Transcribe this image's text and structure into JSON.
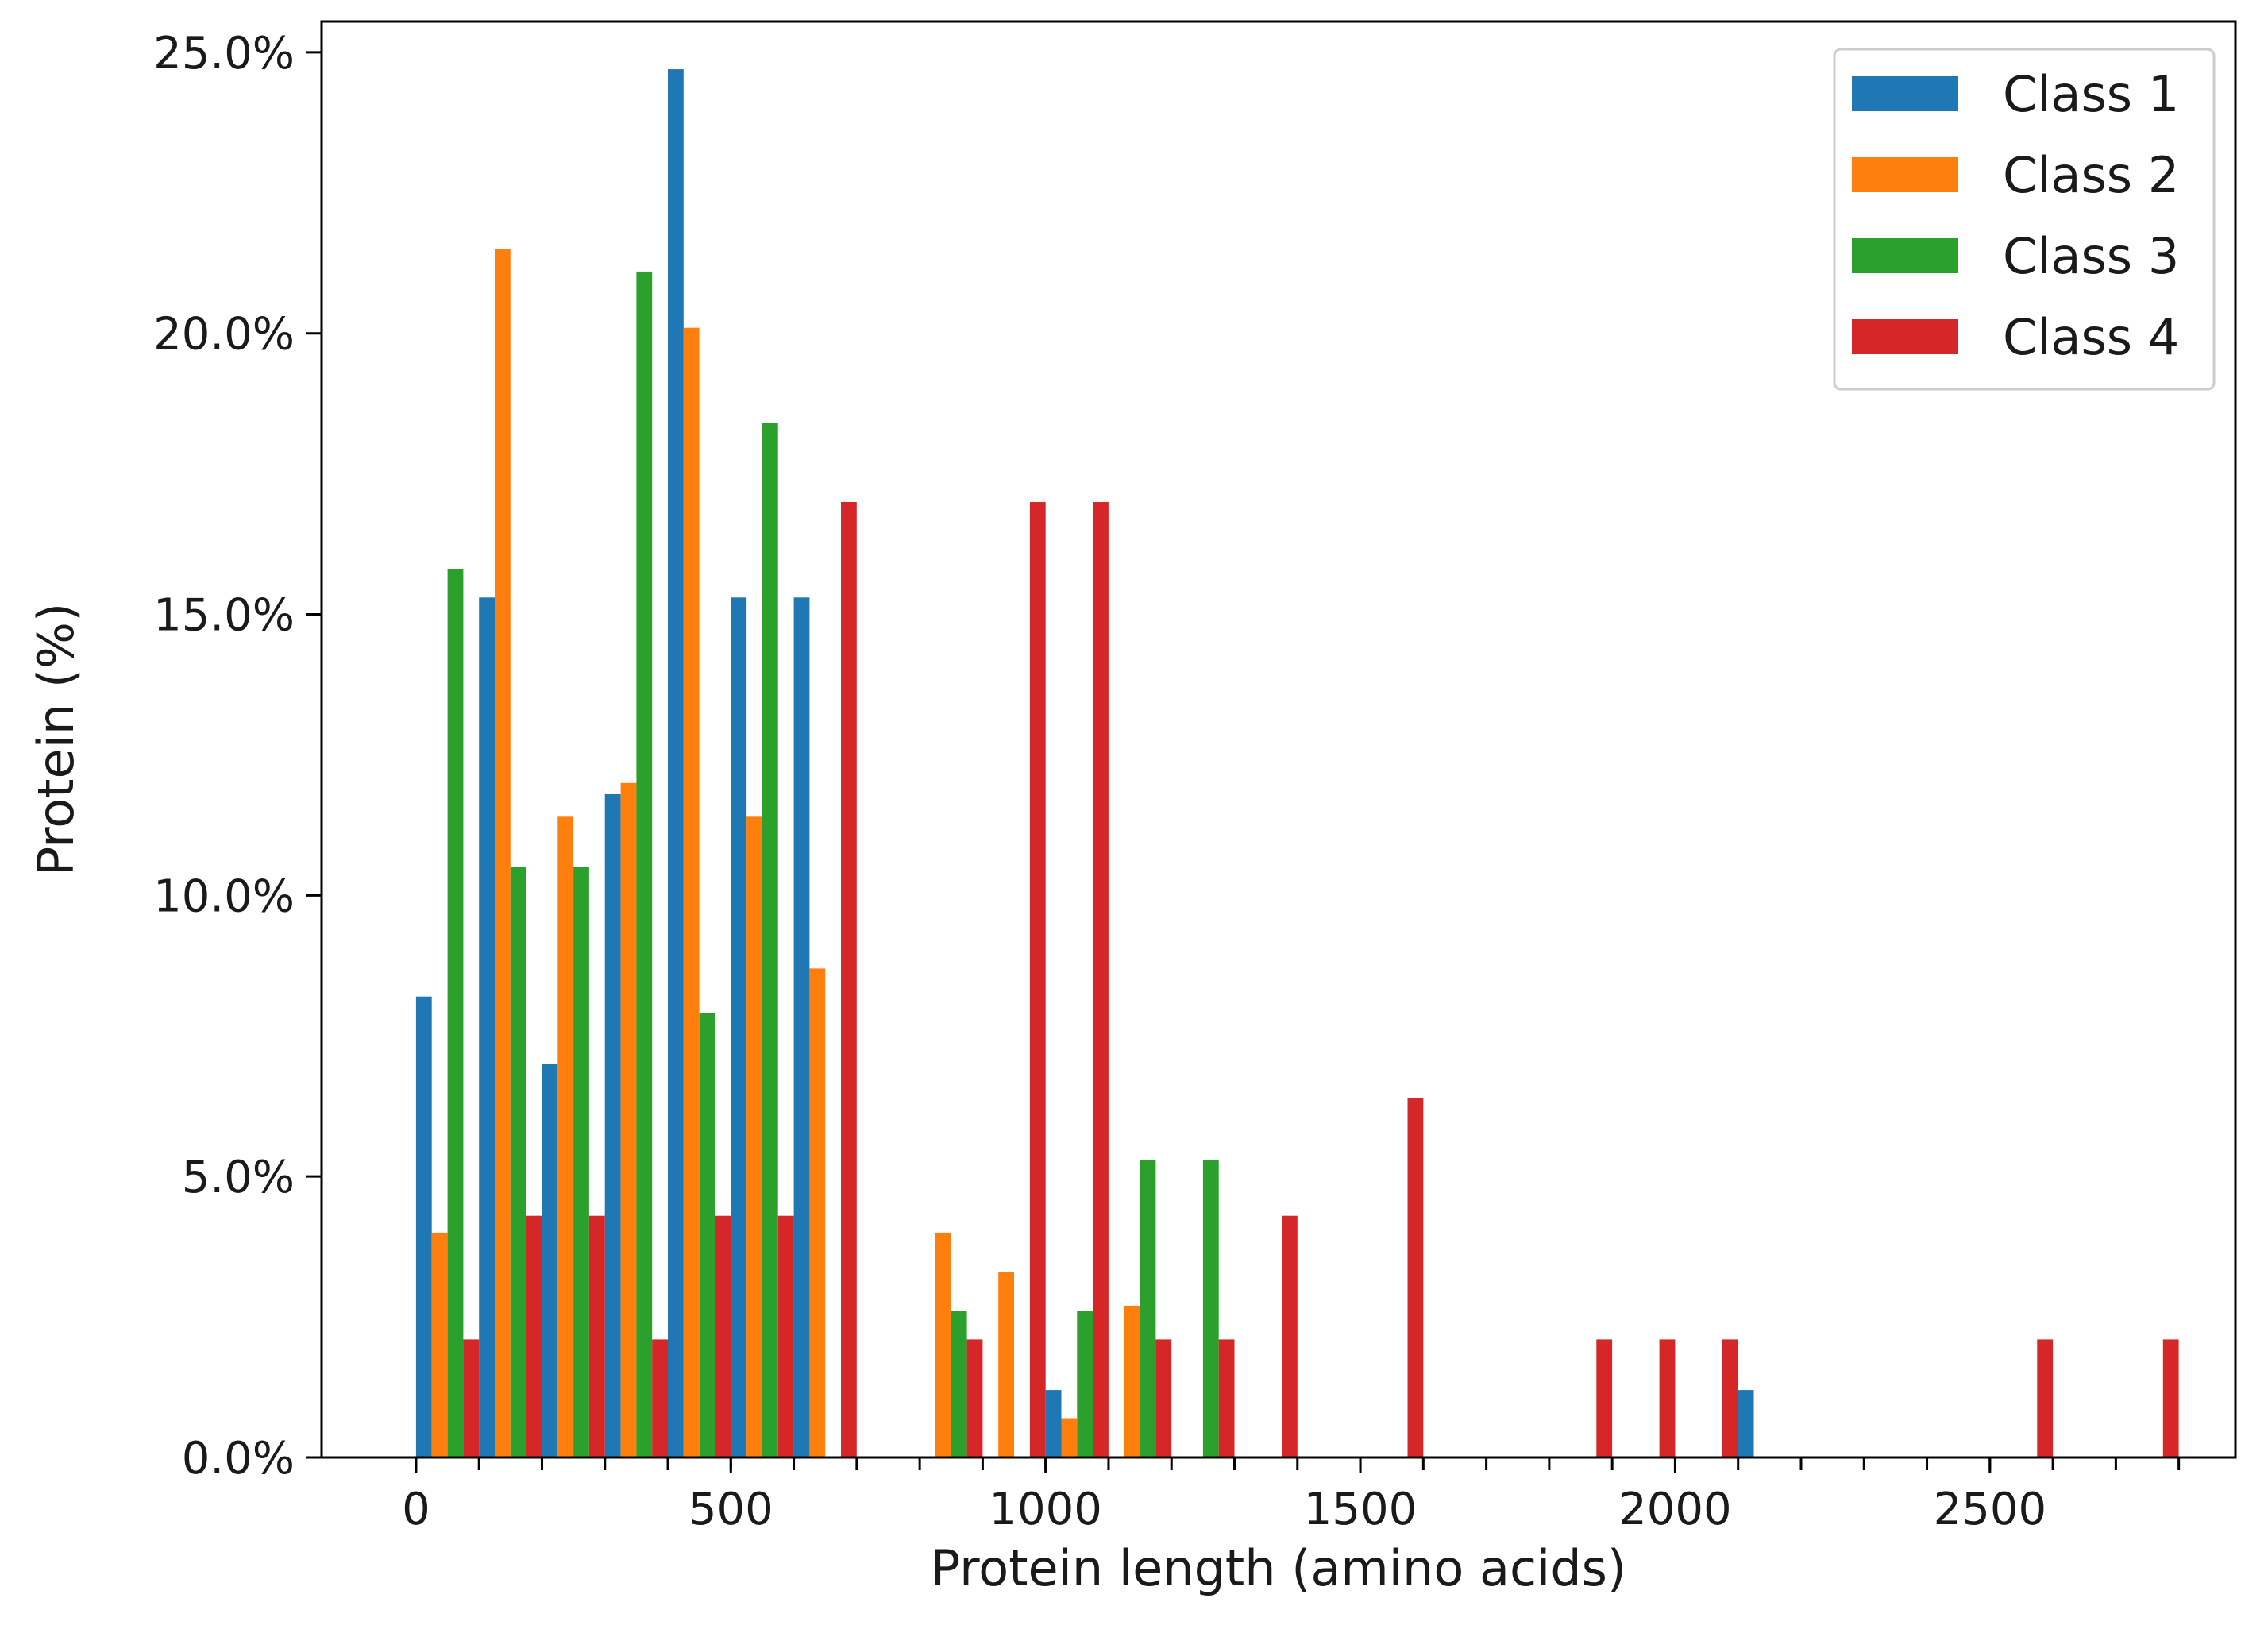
{
  "chart_data": {
    "type": "bar",
    "title": "",
    "xlabel": "Protein length (amino acids)",
    "ylabel": "Protein (%)",
    "xlim": [
      -150,
      2890
    ],
    "ylim": [
      0,
      0.2555
    ],
    "bin_edges": [
      0,
      100,
      200,
      300,
      400,
      500,
      600,
      700,
      800,
      900,
      1000,
      1100,
      1200,
      1300,
      1400,
      1500,
      1600,
      1700,
      1800,
      1900,
      2000,
      2100,
      2200,
      2300,
      2400,
      2500,
      2600,
      2700,
      2800
    ],
    "xticks": [
      0,
      500,
      1000,
      1500,
      2000,
      2500
    ],
    "xtick_labels": [
      "0",
      "500",
      "1000",
      "1500",
      "2000",
      "2500"
    ],
    "yticks": [
      0,
      0.05,
      0.1,
      0.15,
      0.2,
      0.25
    ],
    "ytick_labels": [
      "0.0%",
      "5.0%",
      "10.0%",
      "15.0%",
      "20.0%",
      "25.0%"
    ],
    "legend_position": "top-right",
    "series": [
      {
        "name": "Class 1",
        "color": "#1f77b4",
        "values": [
          0.082,
          0.153,
          0.07,
          0.118,
          0.247,
          0.153,
          0.153,
          0,
          0,
          0,
          0.012,
          0,
          0,
          0,
          0,
          0,
          0,
          0,
          0,
          0,
          0,
          0.012,
          0,
          0,
          0,
          0,
          0,
          0
        ]
      },
      {
        "name": "Class 2",
        "color": "#ff7f0e",
        "values": [
          0.04,
          0.215,
          0.114,
          0.12,
          0.201,
          0.114,
          0.087,
          0,
          0.04,
          0.033,
          0.007,
          0.027,
          0,
          0,
          0,
          0,
          0,
          0,
          0,
          0,
          0,
          0,
          0,
          0,
          0,
          0,
          0,
          0
        ]
      },
      {
        "name": "Class 3",
        "color": "#2ca02c",
        "values": [
          0.158,
          0.105,
          0.105,
          0.211,
          0.079,
          0.184,
          0,
          0,
          0.026,
          0,
          0.026,
          0.053,
          0.053,
          0,
          0,
          0,
          0,
          0,
          0,
          0,
          0,
          0,
          0,
          0,
          0,
          0,
          0,
          0
        ]
      },
      {
        "name": "Class 4",
        "color": "#d62728",
        "values": [
          0.021,
          0.043,
          0.043,
          0.021,
          0.043,
          0.043,
          0.17,
          0,
          0.021,
          0.17,
          0.17,
          0.021,
          0.021,
          0.043,
          0,
          0.064,
          0,
          0,
          0.021,
          0.021,
          0.021,
          0,
          0,
          0,
          0,
          0.021,
          0,
          0.021
        ]
      }
    ]
  }
}
